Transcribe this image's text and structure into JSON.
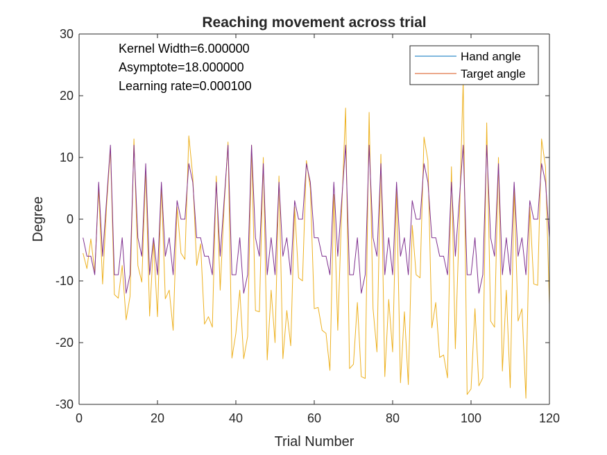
{
  "chart_data": {
    "type": "line",
    "title": "Reaching movement across trial",
    "xlabel": "Trial Number",
    "ylabel": "Degree",
    "xlim": [
      0,
      120
    ],
    "ylim": [
      -30,
      30
    ],
    "xticks": [
      0,
      20,
      40,
      60,
      80,
      100,
      120
    ],
    "yticks": [
      -30,
      -20,
      -10,
      0,
      10,
      20,
      30
    ],
    "grid": false,
    "legend_position": "top-right",
    "annotations": [
      "Kernel Width=6.000000",
      "Asymptote=18.000000",
      "Learning rate=0.000100"
    ],
    "x_start": 1,
    "series": [
      {
        "name": "Hand angle",
        "color": "#0072BD",
        "values": [
          -3,
          -6,
          -6,
          -9,
          6,
          -6,
          3,
          12,
          -9,
          -9,
          -3,
          -12,
          -9,
          12,
          -3,
          -6,
          9,
          -9,
          -3,
          -9,
          6,
          -6,
          -3,
          -9,
          3,
          0,
          0,
          9,
          6,
          -3,
          -3,
          -6,
          -6,
          -9,
          6,
          -6,
          3,
          12,
          -9,
          -9,
          -3,
          -12,
          -9,
          12,
          -3,
          -6,
          9,
          -9,
          -3,
          -9,
          6,
          -6,
          -3,
          -9,
          3,
          0,
          0,
          9,
          6,
          -3,
          -3,
          -6,
          -6,
          -9,
          6,
          -6,
          3,
          12,
          -9,
          -9,
          -3,
          -12,
          -9,
          12,
          -3,
          -6,
          9,
          -9,
          -3,
          -9,
          6,
          -6,
          -3,
          -9,
          3,
          0,
          0,
          9,
          6,
          -3,
          -3,
          -6,
          -6,
          -9,
          6,
          -6,
          3,
          12,
          -9,
          -9,
          -3,
          -12,
          -9,
          12,
          -3,
          -6,
          9,
          -9,
          -3,
          -9,
          6,
          -6,
          -3,
          -9,
          3,
          0,
          0,
          9,
          6,
          -3
        ]
      },
      {
        "name": "Target angle",
        "color": "#D95319",
        "values": [
          -5.5,
          -8,
          -3.2,
          -8.5,
          5,
          -10.5,
          2,
          11.5,
          -12.2,
          -12.8,
          -7.5,
          -16.3,
          -12.5,
          13,
          -7.5,
          -10.2,
          8,
          -15.7,
          -3.6,
          -15.8,
          5.5,
          -12.9,
          -11.5,
          -18,
          2,
          -5.5,
          -6.5,
          13.5,
          7,
          -7.5,
          -4,
          -17,
          -15.8,
          -17.5,
          7,
          -11.5,
          2,
          12.5,
          -22.5,
          -18.5,
          -11.5,
          -22.6,
          -19,
          12,
          -14.8,
          -15,
          10,
          -22.8,
          -11.5,
          -20,
          7,
          -22.6,
          -14.8,
          -20.5,
          2,
          -9.5,
          -10,
          9.5,
          5,
          -14.5,
          -14.3,
          -18,
          -18.5,
          -24.5,
          4,
          -18,
          1.5,
          18,
          -24.2,
          -23.5,
          -13.5,
          -25.5,
          -25.8,
          17.3,
          -14.5,
          -21.5,
          10.5,
          -25.5,
          -13,
          -21.5,
          5,
          -26.5,
          -15,
          -26.8,
          -1,
          -9,
          -9.5,
          13.3,
          9.5,
          -17.6,
          -13.5,
          -22.4,
          -22,
          -25.7,
          8.5,
          -21,
          -0.5,
          22.5,
          -28.4,
          -27.5,
          -14.5,
          -27,
          -25.7,
          15.6,
          -16.5,
          -17.5,
          10,
          -24.6,
          -11.5,
          -27.3,
          5,
          -16.5,
          -14.5,
          -29,
          2,
          -10.5,
          -10.7,
          13,
          8.5,
          -13.8
        ]
      }
    ]
  }
}
